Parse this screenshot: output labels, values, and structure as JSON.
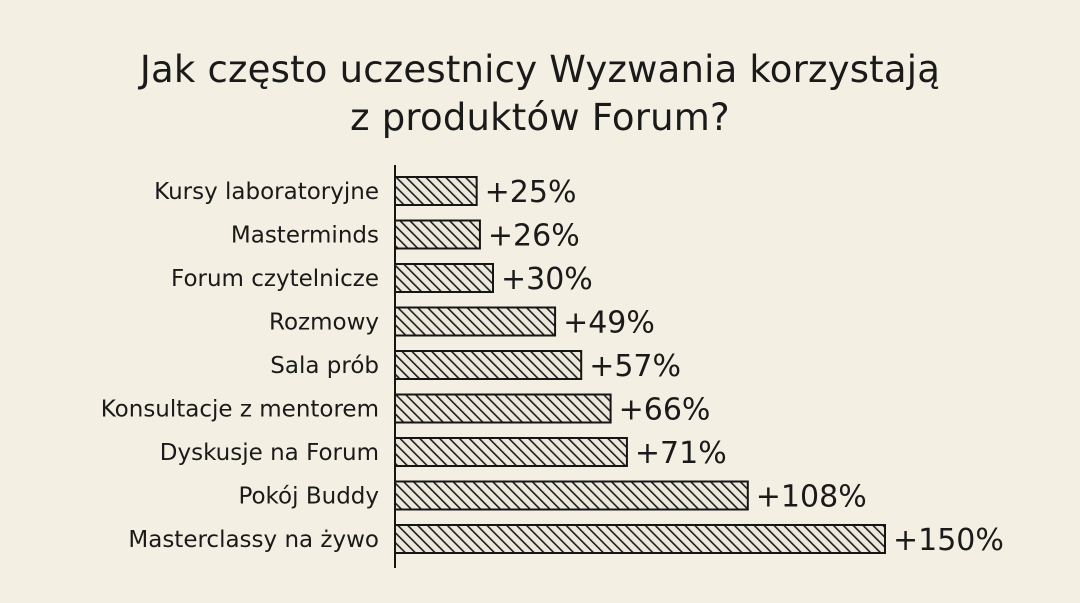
{
  "chart_data": {
    "type": "bar",
    "orientation": "horizontal",
    "title_lines": [
      "Jak często uczestnicy Wyzwania korzystają",
      "z produktów Forum?"
    ],
    "categories": [
      "Kursy laboratoryjne",
      "Masterminds",
      "Forum czytelnicze",
      "Rozmowy",
      "Sala prób",
      "Konsultacje z mentorem",
      "Dyskusje na Forum",
      "Pokój Buddy",
      "Masterclassy na żywo"
    ],
    "values": [
      25,
      26,
      30,
      49,
      57,
      66,
      71,
      108,
      150
    ],
    "value_labels": [
      "+25%",
      "+26%",
      "+30%",
      "+49%",
      "+57%",
      "+66%",
      "+71%",
      "+108%",
      "+150%"
    ],
    "xlim": [
      0,
      150
    ],
    "grid": false,
    "legend": "none"
  },
  "colors": {
    "background": "#f3efe2",
    "bar_fill": "#ece8dc",
    "hatch": "#1e1e1e",
    "outline": "#151515",
    "text": "#1a1a1a"
  }
}
